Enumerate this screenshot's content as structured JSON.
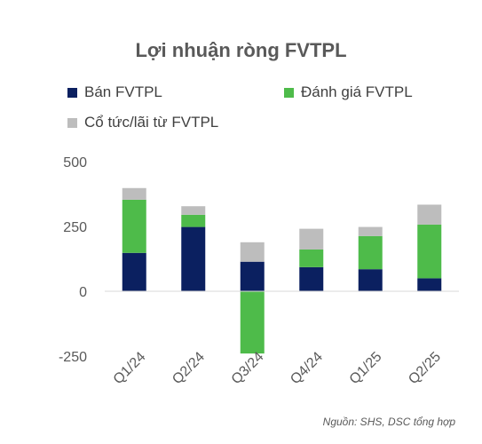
{
  "chart_data": {
    "type": "bar",
    "stacked": true,
    "title": "Lợi nhuận ròng FVTPL",
    "categories": [
      "Q1/24",
      "Q2/24",
      "Q3/24",
      "Q4/24",
      "Q1/25",
      "Q2/25"
    ],
    "series": [
      {
        "name": "Bán FVTPL",
        "color": "#0b2060",
        "values": [
          148,
          248,
          114,
          93,
          85,
          50
        ]
      },
      {
        "name": "Đánh giá FVTPL",
        "color": "#4ebb4a",
        "values": [
          205,
          47,
          -240,
          68,
          128,
          207
        ]
      },
      {
        "name": "Cổ tức/lãi từ FVTPL",
        "color": "#bdbdbd",
        "values": [
          45,
          33,
          75,
          80,
          35,
          77
        ]
      }
    ],
    "yticks": [
      500,
      250,
      0,
      -250
    ],
    "ylim": [
      -250,
      500
    ],
    "grid": false,
    "legend_position": "top"
  },
  "source": "Nguồn: SHS, DSC tổng hợp"
}
